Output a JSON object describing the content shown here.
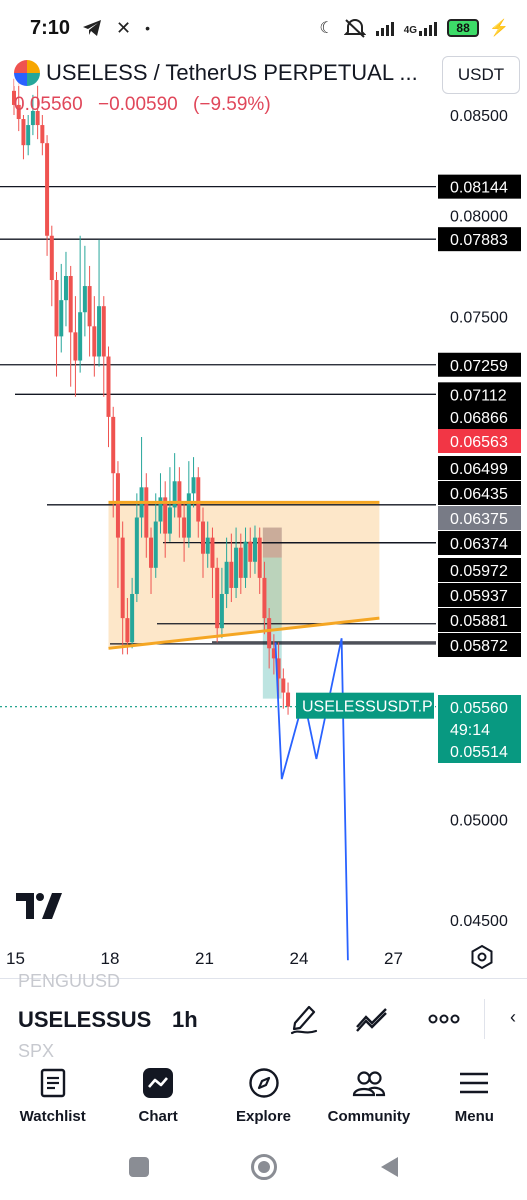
{
  "status_bar": {
    "time": "7:10",
    "left_icons": [
      "telegram-icon",
      "close-icon",
      "dot-icon"
    ],
    "right_icons": [
      "moon-icon",
      "mute-icon",
      "signal-icon",
      "network-4g-icon",
      "battery-icon",
      "charging-icon"
    ],
    "network_label": "4G",
    "battery_level": "88"
  },
  "chart": {
    "symbol_title": "USELESS / TetherUS PERPETUAL ...",
    "last_price": "0.05560",
    "change_abs": "−0.00590",
    "change_pct": "(−9.59%)",
    "currency": "USDT",
    "symbol_tag": "USELESSUSDT.P",
    "countdown": "49:14",
    "colors": {
      "up": "#26a69a",
      "down": "#ef5350",
      "pattern_fill": "#fde3c0",
      "pattern_line": "#f5a623",
      "projection": "#2962ff"
    }
  },
  "chart_data": {
    "type": "candlestick",
    "x_ticks": [
      "15",
      "18",
      "21",
      "24",
      "27"
    ],
    "y_ticks": [
      "0.08500",
      "0.08000",
      "0.07500",
      "0.05000",
      "0.04500"
    ],
    "price_labels": [
      {
        "value": "0.08144",
        "style": "level"
      },
      {
        "value": "0.07883",
        "style": "level"
      },
      {
        "value": "0.07259",
        "style": "level"
      },
      {
        "value": "0.07112",
        "style": "level"
      },
      {
        "value": "0.06866",
        "style": "level"
      },
      {
        "value": "0.06563",
        "style": "alert"
      },
      {
        "value": "0.06499",
        "style": "level"
      },
      {
        "value": "0.06435",
        "style": "level"
      },
      {
        "value": "0.06375",
        "style": "gray"
      },
      {
        "value": "0.06374",
        "style": "level"
      },
      {
        "value": "0.05972",
        "style": "level"
      },
      {
        "value": "0.05937",
        "style": "level"
      },
      {
        "value": "0.05881",
        "style": "level"
      },
      {
        "value": "0.05872",
        "style": "level"
      },
      {
        "value": "0.05560",
        "style": "current"
      },
      {
        "value": "0.05514",
        "style": "current"
      }
    ],
    "ylim": [
      0.0435,
      0.087
    ],
    "xlim": [
      14.5,
      27.8
    ],
    "candles": [
      [
        15.0,
        0.0862,
        0.0855,
        0.0868,
        0.085
      ],
      [
        15.15,
        0.0855,
        0.0848,
        0.0866,
        0.0842
      ],
      [
        15.3,
        0.0848,
        0.0835,
        0.085,
        0.0828
      ],
      [
        15.45,
        0.0835,
        0.0845,
        0.085,
        0.083
      ],
      [
        15.6,
        0.0845,
        0.0852,
        0.086,
        0.084
      ],
      [
        15.75,
        0.0852,
        0.0845,
        0.0865,
        0.0838
      ],
      [
        15.9,
        0.0845,
        0.0836,
        0.085,
        0.083
      ],
      [
        16.05,
        0.0836,
        0.079,
        0.084,
        0.078
      ],
      [
        16.2,
        0.079,
        0.0768,
        0.0795,
        0.0755
      ],
      [
        16.35,
        0.0768,
        0.074,
        0.0772,
        0.072
      ],
      [
        16.5,
        0.074,
        0.0758,
        0.0776,
        0.0732
      ],
      [
        16.65,
        0.0758,
        0.077,
        0.0782,
        0.0745
      ],
      [
        16.8,
        0.077,
        0.0742,
        0.0775,
        0.0715
      ],
      [
        16.95,
        0.0742,
        0.0728,
        0.076,
        0.071
      ],
      [
        17.1,
        0.0728,
        0.0752,
        0.079,
        0.0722
      ],
      [
        17.25,
        0.0752,
        0.0765,
        0.0785,
        0.074
      ],
      [
        17.4,
        0.0765,
        0.0745,
        0.0775,
        0.073
      ],
      [
        17.55,
        0.0745,
        0.073,
        0.076,
        0.072
      ],
      [
        17.7,
        0.073,
        0.0755,
        0.0788,
        0.0725
      ],
      [
        17.85,
        0.0755,
        0.073,
        0.076,
        0.071
      ],
      [
        18.0,
        0.073,
        0.07,
        0.0735,
        0.0685
      ],
      [
        18.15,
        0.07,
        0.0672,
        0.0705,
        0.065
      ],
      [
        18.3,
        0.0672,
        0.064,
        0.0678,
        0.0615
      ],
      [
        18.45,
        0.064,
        0.06,
        0.0648,
        0.0582
      ],
      [
        18.6,
        0.06,
        0.0588,
        0.061,
        0.0582
      ],
      [
        18.75,
        0.0588,
        0.0612,
        0.062,
        0.0585
      ],
      [
        18.9,
        0.0612,
        0.065,
        0.0662,
        0.0608
      ],
      [
        19.05,
        0.065,
        0.0665,
        0.069,
        0.064
      ],
      [
        19.2,
        0.0665,
        0.064,
        0.0672,
        0.063
      ],
      [
        19.35,
        0.064,
        0.0625,
        0.0645,
        0.0612
      ],
      [
        19.5,
        0.0625,
        0.0648,
        0.0662,
        0.062
      ],
      [
        19.65,
        0.0648,
        0.066,
        0.0672,
        0.0642
      ],
      [
        19.8,
        0.066,
        0.0642,
        0.0668,
        0.063
      ],
      [
        19.95,
        0.0642,
        0.0655,
        0.0675,
        0.0638
      ],
      [
        20.1,
        0.0655,
        0.0668,
        0.0682,
        0.065
      ],
      [
        20.25,
        0.0668,
        0.065,
        0.0675,
        0.064
      ],
      [
        20.4,
        0.065,
        0.064,
        0.0658,
        0.0628
      ],
      [
        20.55,
        0.064,
        0.0662,
        0.0678,
        0.0635
      ],
      [
        20.7,
        0.0662,
        0.067,
        0.068,
        0.0655
      ],
      [
        20.85,
        0.067,
        0.0648,
        0.0675,
        0.064
      ],
      [
        21.0,
        0.0648,
        0.0632,
        0.0655,
        0.062
      ],
      [
        21.15,
        0.0632,
        0.064,
        0.0648,
        0.0625
      ],
      [
        21.3,
        0.064,
        0.0625,
        0.0645,
        0.061
      ],
      [
        21.45,
        0.0625,
        0.0595,
        0.063,
        0.0588
      ],
      [
        21.6,
        0.0595,
        0.0612,
        0.0625,
        0.059
      ],
      [
        21.75,
        0.0612,
        0.0628,
        0.064,
        0.0605
      ],
      [
        21.9,
        0.0628,
        0.0615,
        0.0642,
        0.0608
      ],
      [
        22.05,
        0.0615,
        0.0635,
        0.0645,
        0.061
      ],
      [
        22.2,
        0.0635,
        0.062,
        0.0642,
        0.0612
      ],
      [
        22.35,
        0.062,
        0.0638,
        0.0645,
        0.0615
      ],
      [
        22.5,
        0.0638,
        0.0628,
        0.0645,
        0.062
      ],
      [
        22.65,
        0.0628,
        0.064,
        0.0646,
        0.0622
      ],
      [
        22.8,
        0.064,
        0.062,
        0.0645,
        0.0612
      ],
      [
        22.95,
        0.062,
        0.06,
        0.0628,
        0.0592
      ],
      [
        23.1,
        0.06,
        0.0585,
        0.0605,
        0.0575
      ],
      [
        23.25,
        0.0585,
        0.058,
        0.0592,
        0.0572
      ],
      [
        23.4,
        0.058,
        0.057,
        0.0588,
        0.056
      ],
      [
        23.55,
        0.057,
        0.0563,
        0.0575,
        0.0555
      ],
      [
        23.7,
        0.0563,
        0.0556,
        0.0568,
        0.0552
      ]
    ],
    "horizontal_levels": [
      0.08144,
      0.07883,
      0.07259,
      0.07112,
      0.06866,
      0.06563,
      0.06499,
      0.06435,
      0.06375,
      0.06374,
      0.05972,
      0.05937,
      0.05881,
      0.05872,
      0.05514
    ],
    "pattern_top": 0.06575,
    "pattern_bottom_line": [
      [
        18.0,
        0.0585
      ],
      [
        26.6,
        0.06
      ]
    ],
    "pattern_top_line": [
      [
        18.0,
        0.06575
      ],
      [
        26.6,
        0.06575
      ]
    ],
    "projection_path": [
      [
        23.3,
        0.0588
      ],
      [
        23.5,
        0.052
      ],
      [
        24.2,
        0.056
      ],
      [
        24.6,
        0.053
      ],
      [
        25.4,
        0.059
      ],
      [
        25.6,
        0.043
      ]
    ],
    "sell_zone": {
      "x": [
        22.9,
        23.5
      ],
      "y": [
        0.056,
        0.0645
      ]
    },
    "current_price": 0.0556
  },
  "toolbar": {
    "ticker_prev": "PENGUUSD",
    "ticker_current": "USELESSUS",
    "ticker_next": "SPX",
    "interval": "1h",
    "collapse": "‹"
  },
  "bottom_nav": {
    "items": [
      {
        "label": "Watchlist",
        "icon": "watchlist-icon"
      },
      {
        "label": "Chart",
        "icon": "chart-icon"
      },
      {
        "label": "Explore",
        "icon": "compass-icon"
      },
      {
        "label": "Community",
        "icon": "community-icon"
      },
      {
        "label": "Menu",
        "icon": "menu-icon"
      }
    ]
  }
}
